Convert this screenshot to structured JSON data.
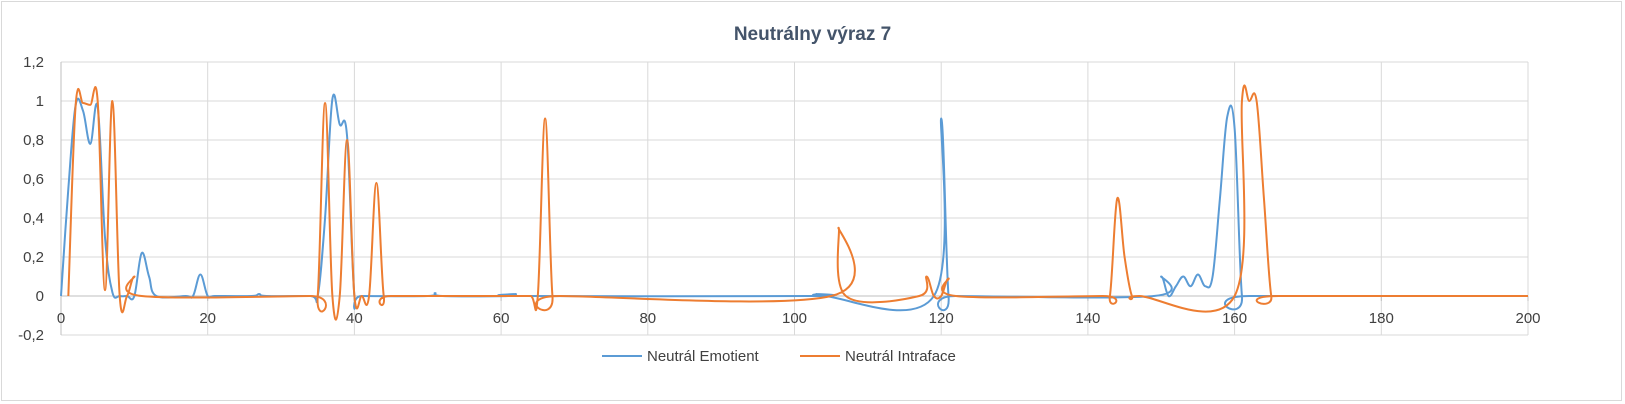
{
  "chart_data": {
    "type": "line",
    "title": "Neutrálny výraz 7",
    "xlabel": "",
    "ylabel": "",
    "xlim": [
      0,
      200
    ],
    "ylim": [
      -0.2,
      1.2
    ],
    "x_ticks": [
      0,
      20,
      40,
      60,
      80,
      100,
      120,
      140,
      160,
      180,
      200
    ],
    "x_tick_labels": [
      "0",
      "20",
      "40",
      "60",
      "80",
      "100",
      "120",
      "140",
      "160",
      "180",
      "200"
    ],
    "y_ticks": [
      -0.2,
      0,
      0.2,
      0.4,
      0.6,
      0.8,
      1,
      1.2
    ],
    "y_tick_labels": [
      "-0,2",
      "0",
      "0,2",
      "0,4",
      "0,6",
      "0,8",
      "1",
      "1,2"
    ],
    "grid": true,
    "legend_position": "bottom",
    "series": [
      {
        "name": "Neutrál Emotient",
        "color": "#5b9bd5",
        "points": [
          [
            0,
            0
          ],
          [
            1,
            0.55
          ],
          [
            2,
            0.98
          ],
          [
            3,
            0.95
          ],
          [
            4,
            0.78
          ],
          [
            5,
            0.97
          ],
          [
            6,
            0.3
          ],
          [
            7,
            0.02
          ],
          [
            8,
            0
          ],
          [
            9,
            0
          ],
          [
            10,
            0
          ],
          [
            11,
            0.22
          ],
          [
            12,
            0.1
          ],
          [
            13,
            0
          ],
          [
            17,
            0
          ],
          [
            18,
            0
          ],
          [
            19,
            0.11
          ],
          [
            20,
            0
          ],
          [
            21,
            0
          ],
          [
            26,
            0
          ],
          [
            27,
            0.01
          ],
          [
            28,
            0
          ],
          [
            34,
            0
          ],
          [
            35,
            0
          ],
          [
            36,
            0.4
          ],
          [
            37,
            1.01
          ],
          [
            38,
            0.88
          ],
          [
            39,
            0.82
          ],
          [
            40,
            0
          ],
          [
            41,
            0
          ],
          [
            50,
            0
          ],
          [
            51,
            0.015
          ],
          [
            52,
            0
          ],
          [
            61,
            0
          ],
          [
            62,
            0.01
          ],
          [
            63,
            0
          ],
          [
            102,
            0
          ],
          [
            103,
            0.01
          ],
          [
            104,
            0
          ],
          [
            119,
            0
          ],
          [
            120,
            0.91
          ],
          [
            121,
            0
          ],
          [
            122,
            0
          ],
          [
            149,
            0
          ],
          [
            150,
            0.1
          ],
          [
            151,
            0
          ],
          [
            152,
            0.05
          ],
          [
            153,
            0.1
          ],
          [
            154,
            0.05
          ],
          [
            155,
            0.11
          ],
          [
            156,
            0.05
          ],
          [
            157,
            0.1
          ],
          [
            158,
            0.5
          ],
          [
            159,
            0.92
          ],
          [
            160,
            0.86
          ],
          [
            161,
            0
          ],
          [
            162,
            0
          ],
          [
            200,
            0
          ]
        ]
      },
      {
        "name": "Neutrál Intraface",
        "color": "#ed7d31",
        "points": [
          [
            1,
            0
          ],
          [
            2,
            0.98
          ],
          [
            3,
            0.99
          ],
          [
            4,
            0.98
          ],
          [
            5,
            1.0
          ],
          [
            6,
            0.03
          ],
          [
            7,
            1.0
          ],
          [
            8,
            0
          ],
          [
            9,
            0
          ],
          [
            10,
            0.1
          ],
          [
            11,
            0
          ],
          [
            34,
            0
          ],
          [
            35,
            0
          ],
          [
            36,
            0.99
          ],
          [
            37,
            0
          ],
          [
            38,
            0
          ],
          [
            39,
            0.8
          ],
          [
            40,
            0
          ],
          [
            41,
            0
          ],
          [
            42,
            0
          ],
          [
            43,
            0.58
          ],
          [
            44,
            0
          ],
          [
            45,
            0
          ],
          [
            64,
            0
          ],
          [
            65,
            0
          ],
          [
            66,
            0.91
          ],
          [
            67,
            0
          ],
          [
            68,
            0
          ],
          [
            61,
            0
          ],
          [
            105,
            0
          ],
          [
            106,
            0.35
          ],
          [
            107,
            0
          ],
          [
            117,
            0
          ],
          [
            118,
            0.1
          ],
          [
            119,
            0
          ],
          [
            120,
            0
          ],
          [
            121,
            0.09
          ],
          [
            122,
            0
          ],
          [
            142,
            0
          ],
          [
            143,
            0
          ],
          [
            144,
            0.5
          ],
          [
            145,
            0.2
          ],
          [
            146,
            0
          ],
          [
            147,
            0
          ],
          [
            160,
            0
          ],
          [
            161,
            1.0
          ],
          [
            162,
            1.0
          ],
          [
            163,
            1.0
          ],
          [
            164,
            0.5
          ],
          [
            165,
            0
          ],
          [
            166,
            0
          ],
          [
            200,
            0
          ]
        ]
      }
    ]
  }
}
